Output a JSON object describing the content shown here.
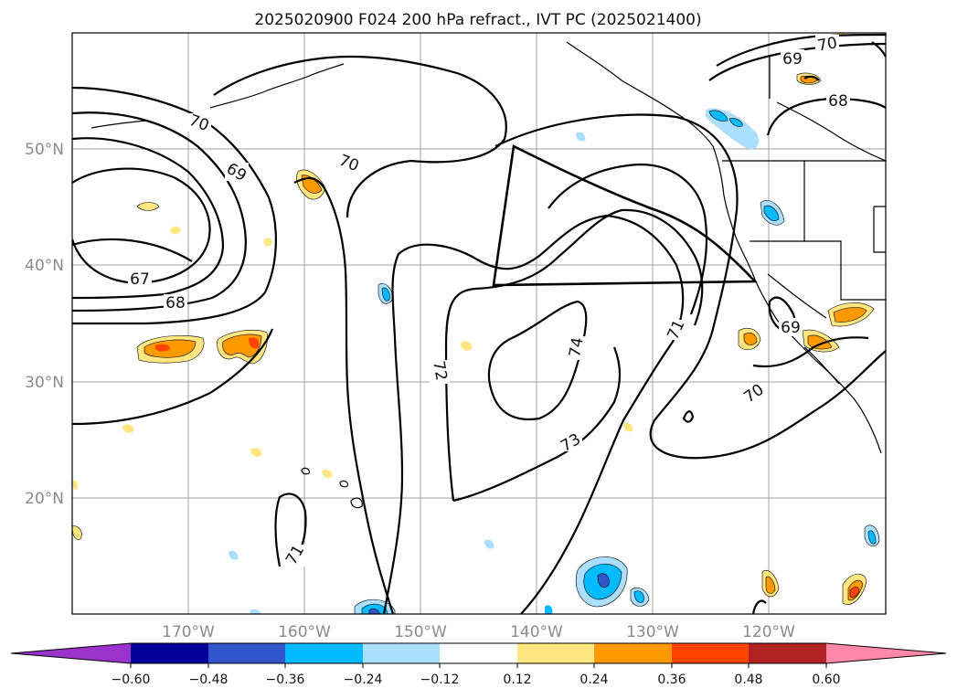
{
  "title": "2025020900 F024 200 hPa refract., IVT PC (2025021400)",
  "map": {
    "lat_labels": [
      "50°N",
      "40°N",
      "30°N",
      "20°N"
    ],
    "lon_labels": [
      "170°W",
      "160°W",
      "150°W",
      "140°W",
      "130°W",
      "120°W"
    ],
    "contour_labels": [
      "70",
      "70",
      "69",
      "67",
      "68",
      "72",
      "74",
      "73",
      "71",
      "70",
      "69",
      "68",
      "71",
      "69",
      "70"
    ],
    "contour_color": "#000000",
    "gridline_color": "#a0a0a0"
  },
  "colorbar": {
    "ticks": [
      "−0.60",
      "−0.48",
      "−0.36",
      "−0.24",
      "−0.12",
      "0.12",
      "0.24",
      "0.36",
      "0.48",
      "0.60"
    ],
    "colors": [
      "#9933cc",
      "#000099",
      "#3355cc",
      "#00bbff",
      "#aadfff",
      "#ffffff",
      "#ffe680",
      "#ff9900",
      "#ff4400",
      "#b22222",
      "#ff88aa"
    ]
  }
}
